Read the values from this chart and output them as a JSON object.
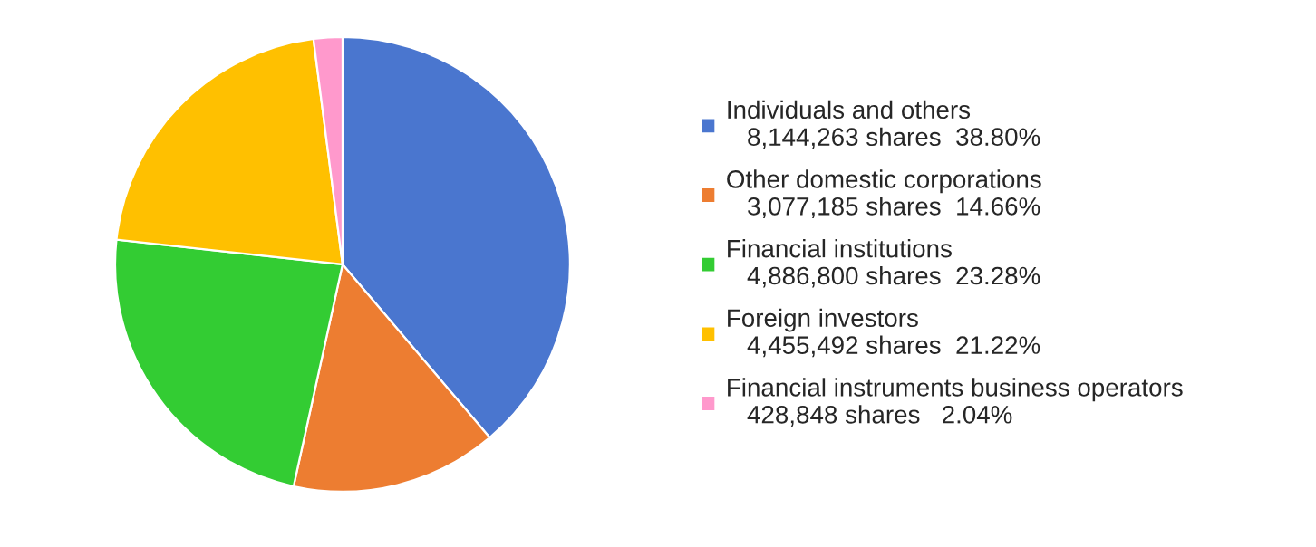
{
  "chart_data": {
    "type": "pie",
    "categories": [
      "Individuals and others",
      "Other domestic corporations",
      "Financial institutions",
      "Foreign investors",
      "Financial instruments business operators"
    ],
    "values": [
      8144263,
      3077185,
      4886800,
      4455492,
      428848
    ],
    "value_labels": [
      "8,144,263 shares  38.80%",
      "3,077,185 shares  14.66%",
      "4,886,800 shares  23.28%",
      "4,455,492 shares  21.22%",
      "428,848 shares   2.04%"
    ],
    "colors": [
      "#4a76cf",
      "#ed7d31",
      "#33cc33",
      "#ffc000",
      "#ff99cc"
    ],
    "legend": "right"
  }
}
